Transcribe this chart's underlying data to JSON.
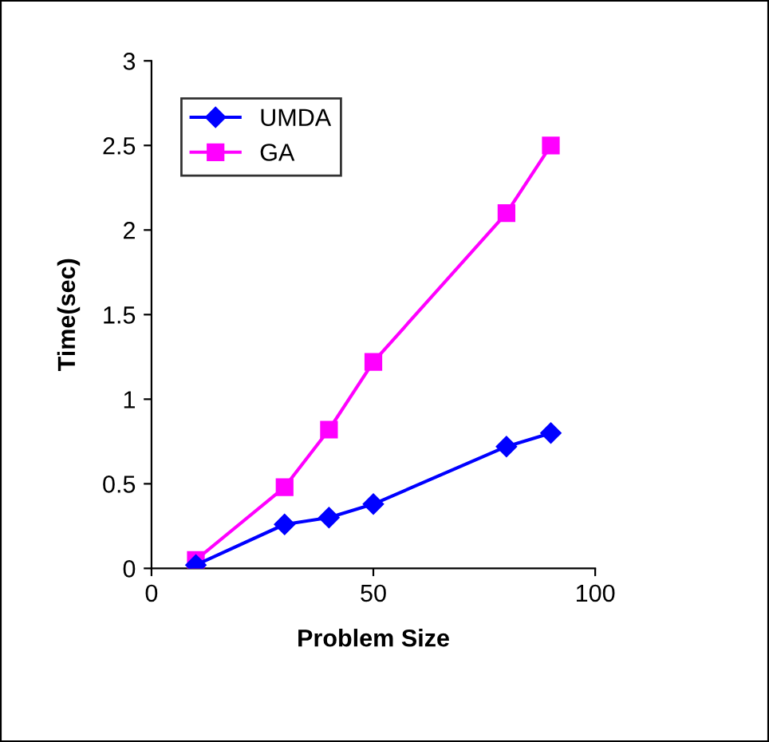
{
  "chart_data": {
    "type": "line",
    "xlabel": "Problem Size",
    "ylabel": "Time(sec)",
    "x": [
      10,
      30,
      40,
      50,
      80,
      90
    ],
    "series": [
      {
        "name": "UMDA",
        "color": "#0000ff",
        "marker": "diamond",
        "values": [
          0.02,
          0.26,
          0.3,
          0.38,
          0.72,
          0.8
        ]
      },
      {
        "name": "GA",
        "color": "#ff00ff",
        "marker": "square",
        "values": [
          0.05,
          0.48,
          0.82,
          1.22,
          2.1,
          2.5
        ]
      }
    ],
    "xlim": [
      0,
      100
    ],
    "xticks": [
      0,
      50,
      100
    ],
    "ylim": [
      0,
      3
    ],
    "yticks": [
      0,
      0.5,
      1,
      1.5,
      2,
      2.5,
      3
    ],
    "grid": false,
    "legend": "top left",
    "line_style": "solid"
  }
}
